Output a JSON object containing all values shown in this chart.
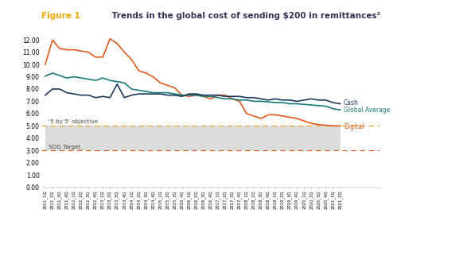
{
  "title_figure": "Figure 1",
  "title_rest": " Trends in the global cost of sending $200 in remittances²",
  "x_labels": [
    "2011_1Q",
    "2011_2Q",
    "2011_3Q",
    "2011_4Q",
    "2012_1Q",
    "2012_2Q",
    "2012_3Q",
    "2012_4Q",
    "2013_1Q",
    "2013_2Q",
    "2013_3Q",
    "2013_4Q",
    "2014_1Q",
    "2014_2Q",
    "2014_3Q",
    "2014_4Q",
    "2015_1Q",
    "2015_2Q",
    "2015_3Q",
    "2015_4Q",
    "2016_1Q",
    "2016_2Q",
    "2016_3Q",
    "2016_4Q",
    "2017_1Q",
    "2017_2Q",
    "2017_3Q",
    "2017_4Q",
    "2018_1Q",
    "2018_2Q",
    "2018_3Q",
    "2018_4Q",
    "2019_1Q",
    "2019_2Q",
    "2019_3Q",
    "2019_4Q",
    "2020_1Q",
    "2020_2Q",
    "2020_3Q",
    "2020_4Q",
    "2021_1Q",
    "2021_2Q"
  ],
  "cash": [
    7.5,
    8.0,
    8.0,
    7.7,
    7.6,
    7.5,
    7.5,
    7.3,
    7.4,
    7.3,
    8.4,
    7.3,
    7.5,
    7.6,
    7.6,
    7.6,
    7.6,
    7.5,
    7.5,
    7.4,
    7.6,
    7.6,
    7.5,
    7.5,
    7.5,
    7.4,
    7.4,
    7.4,
    7.3,
    7.3,
    7.2,
    7.1,
    7.2,
    7.1,
    7.1,
    7.0,
    7.1,
    7.2,
    7.1,
    7.1,
    6.9,
    6.8
  ],
  "global_average": [
    9.05,
    9.3,
    9.1,
    8.9,
    9.0,
    8.9,
    8.8,
    8.7,
    8.9,
    8.7,
    8.6,
    8.5,
    8.0,
    7.9,
    7.8,
    7.7,
    7.7,
    7.7,
    7.6,
    7.5,
    7.5,
    7.5,
    7.4,
    7.4,
    7.3,
    7.2,
    7.2,
    7.1,
    7.1,
    7.0,
    7.0,
    6.95,
    6.9,
    6.9,
    6.8,
    6.8,
    6.75,
    6.7,
    6.65,
    6.6,
    6.4,
    6.3
  ],
  "digital": [
    10.0,
    12.0,
    11.3,
    11.2,
    11.2,
    11.1,
    11.0,
    10.6,
    10.6,
    12.1,
    11.7,
    11.0,
    10.4,
    9.5,
    9.3,
    9.0,
    8.5,
    8.3,
    8.1,
    7.5,
    7.4,
    7.5,
    7.4,
    7.2,
    7.5,
    7.5,
    7.2,
    7.0,
    6.0,
    5.8,
    5.6,
    5.9,
    5.9,
    5.8,
    5.7,
    5.6,
    5.4,
    5.2,
    5.1,
    5.05,
    5.0,
    5.0
  ],
  "cash_color": "#1a3a5c",
  "global_avg_color": "#1a7a7a",
  "digital_color": "#e05a1e",
  "five_by_five_level": 5.0,
  "sdg_target_level": 3.0,
  "five_by_five_color": "#e8a020",
  "sdg_color": "#e05a1e",
  "shade_color": "#dcdcdc",
  "ylim": [
    0,
    12.5
  ],
  "yticks": [
    0.0,
    1.0,
    2.0,
    3.0,
    4.0,
    5.0,
    6.0,
    7.0,
    8.0,
    9.0,
    10.0,
    11.0,
    12.0
  ],
  "background_color": "#ffffff",
  "label_cash": "Cash",
  "label_global": "Global Average",
  "label_digital": "Digital",
  "label_5by5": "'5 by 5' objective",
  "label_sdg": "SDG Target",
  "title_fig1_color": "#f0a800",
  "title_rest_color": "#2d3557"
}
